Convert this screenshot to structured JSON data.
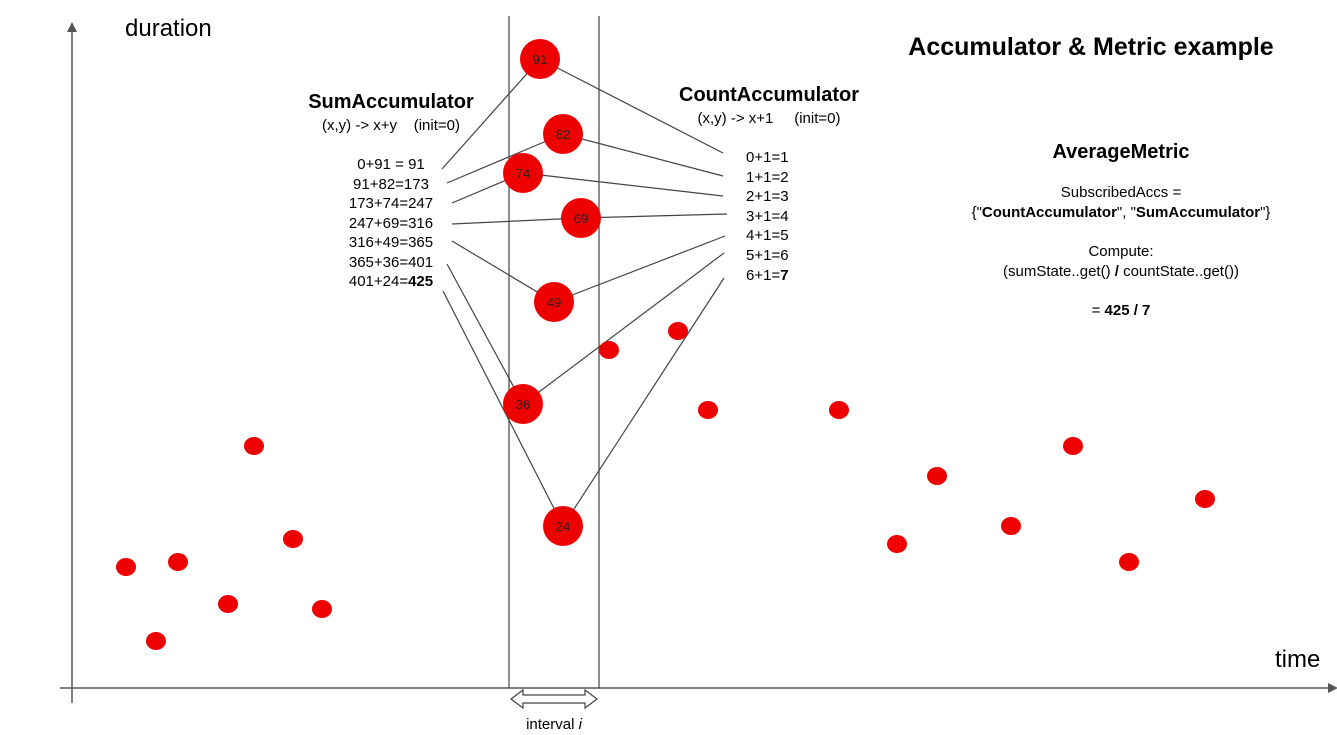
{
  "title": "Accumulator & Metric example",
  "axes": {
    "y_label": "duration",
    "x_label": "time"
  },
  "interval": {
    "label_prefix": "interval ",
    "label_italic": "i"
  },
  "sum_accumulator": {
    "title": "SumAccumulator",
    "rule": "(x,y) -> x+y    (init=0)",
    "steps": [
      {
        "expr": "0+91 = 91",
        "result_bold": ""
      },
      {
        "expr": "91+82=173",
        "result_bold": ""
      },
      {
        "expr": "173+74=247",
        "result_bold": ""
      },
      {
        "expr": "247+69=316",
        "result_bold": ""
      },
      {
        "expr": "316+49=365",
        "result_bold": ""
      },
      {
        "expr": "365+36=401",
        "result_bold": ""
      },
      {
        "expr": "401+24=",
        "result_bold": "425"
      }
    ]
  },
  "count_accumulator": {
    "title": "CountAccumulator",
    "rule": "(x,y) -> x+1     (init=0)",
    "steps": [
      {
        "expr": "0+1=1",
        "result_bold": ""
      },
      {
        "expr": "1+1=2",
        "result_bold": ""
      },
      {
        "expr": "2+1=3",
        "result_bold": ""
      },
      {
        "expr": "3+1=4",
        "result_bold": ""
      },
      {
        "expr": "4+1=5",
        "result_bold": ""
      },
      {
        "expr": "5+1=6",
        "result_bold": ""
      },
      {
        "expr": "6+1=",
        "result_bold": "7"
      }
    ]
  },
  "average_metric": {
    "title": "AverageMetric",
    "subscribed_label": "SubscribedAccs =",
    "subscribed_open": "{\"",
    "subscribed_acc1": "CountAccumulator",
    "subscribed_sep": "\", \"",
    "subscribed_acc2": "SumAccumulator",
    "subscribed_close": "\"}",
    "compute_label": "Compute:",
    "compute_expr_a": "(sumState..get() ",
    "compute_op": "/",
    "compute_expr_b": " countState..get())",
    "result_prefix": "= ",
    "result_value": "425 / 7"
  },
  "interval_values": [
    "91",
    "82",
    "74",
    "69",
    "49",
    "36",
    "24"
  ],
  "colors": {
    "dot": "#ee0000",
    "line": "#444444",
    "axis": "#555555"
  }
}
